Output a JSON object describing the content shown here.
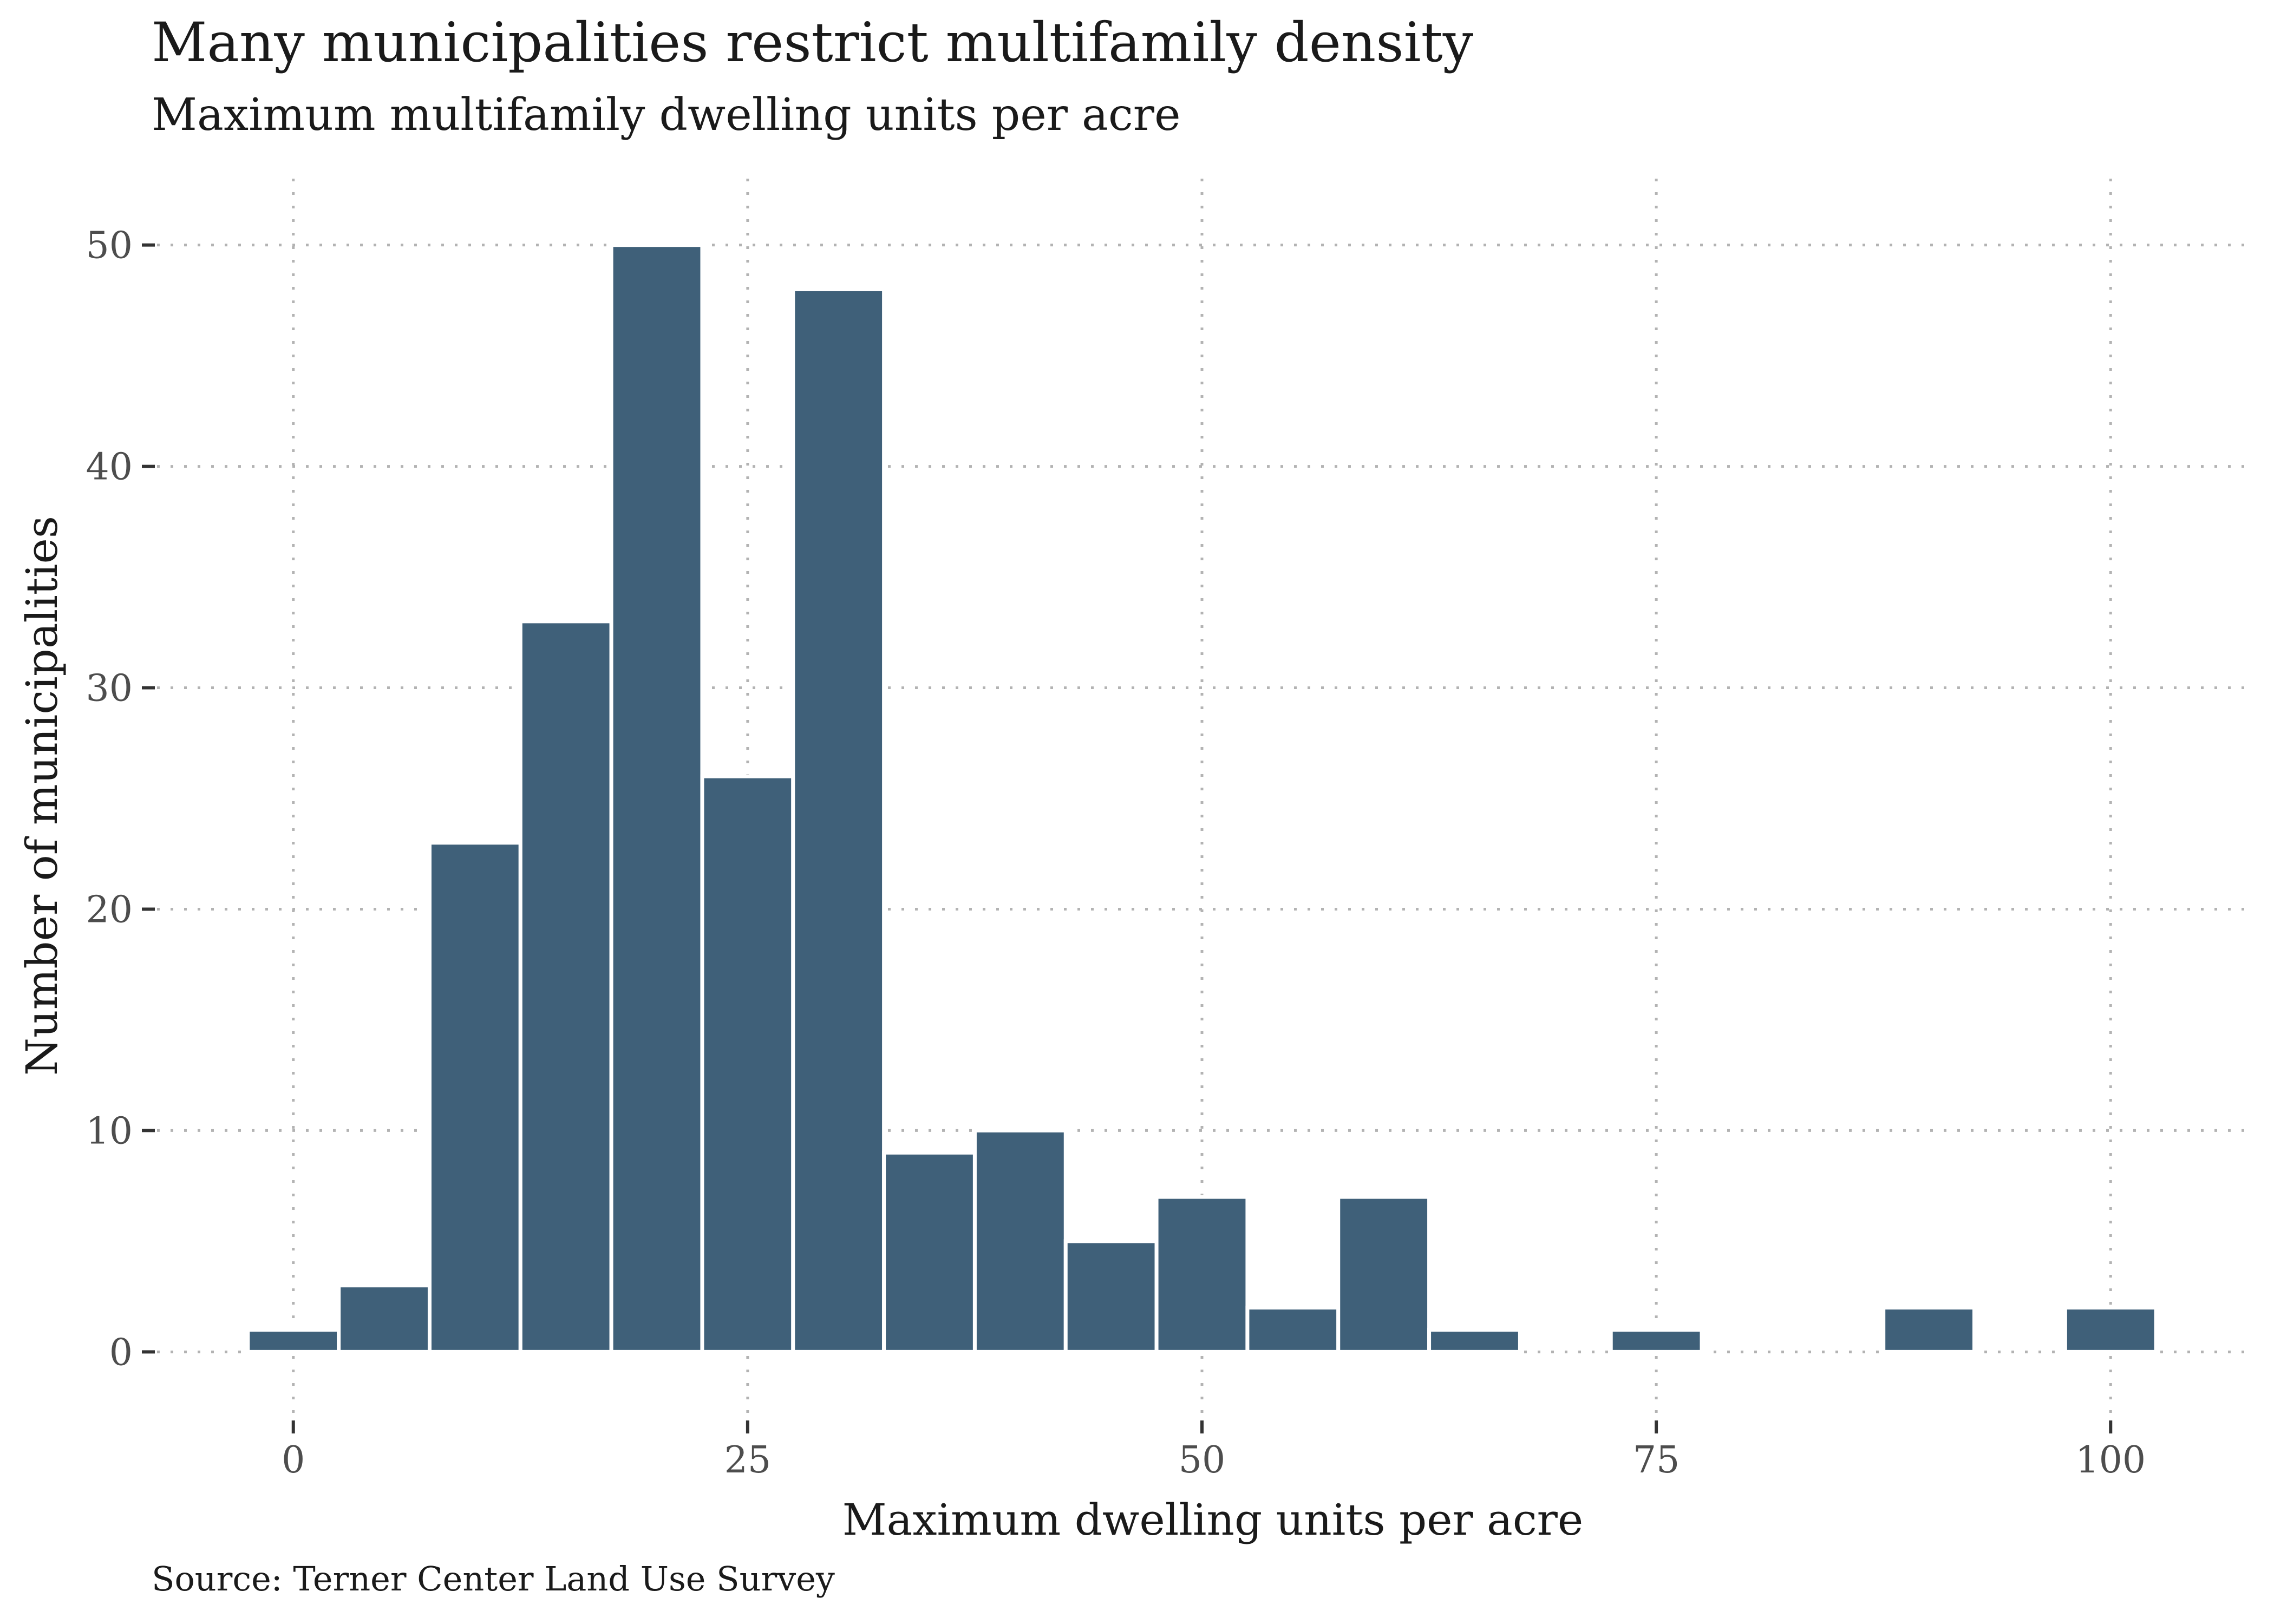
{
  "chart_data": {
    "type": "bar",
    "title": "Many municipalities restrict multifamily density",
    "subtitle": "Maximum multifamily dwelling units per acre",
    "caption": "Source: Terner Center Land Use Survey",
    "xlabel": "Maximum dwelling units per acre",
    "ylabel": "Number of municipalities",
    "bin_width": 5,
    "bin_centers": [
      0,
      5,
      10,
      15,
      20,
      25,
      30,
      35,
      40,
      45,
      50,
      55,
      60,
      65,
      75,
      90,
      100
    ],
    "values": [
      1,
      3,
      23,
      33,
      50,
      26,
      48,
      9,
      10,
      5,
      7,
      2,
      7,
      1,
      1,
      2,
      2
    ],
    "xlim": [
      -7.5,
      107.5
    ],
    "ylim": [
      -3.0,
      53.0
    ],
    "x_ticks": [
      0,
      25,
      50,
      75,
      100
    ],
    "x_tick_labels": [
      "0",
      "25",
      "50",
      "75",
      "100"
    ],
    "y_ticks": [
      0,
      10,
      20,
      30,
      40,
      50
    ],
    "y_tick_labels": [
      "0",
      "10",
      "20",
      "30",
      "40",
      "50"
    ],
    "grid": true,
    "grid_style": "dotted",
    "legend": "none",
    "colors": {
      "bar": "#3f6079",
      "bar_outline": "#ffffff",
      "grid": "#b3b3b3",
      "tick_label": "#4d4d4d",
      "axis_title": "#1a1a1a"
    }
  }
}
